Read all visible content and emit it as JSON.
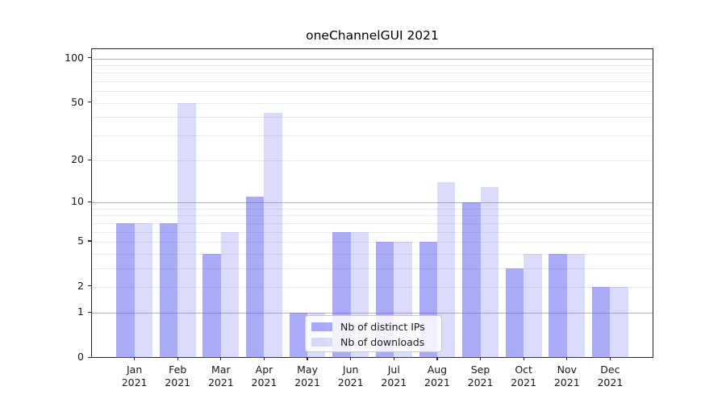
{
  "title": "oneChannelGUI 2021",
  "colors": {
    "bar_distinct_ips": "rgba(85,85,238,0.5)",
    "bar_downloads": "rgba(85,85,238,0.21)",
    "grid_major": "#b4b4b4",
    "grid_minor": "#eaeaee",
    "axis": "#262626",
    "background": "#ffffff"
  },
  "chart_data": {
    "type": "bar",
    "title": "oneChannelGUI 2021",
    "categories": [
      "Jan 2021",
      "Feb 2021",
      "Mar 2021",
      "Apr 2021",
      "May 2021",
      "Jun 2021",
      "Jul 2021",
      "Aug 2021",
      "Sep 2021",
      "Oct 2021",
      "Nov 2021",
      "Dec 2021"
    ],
    "month_names": [
      "Jan",
      "Feb",
      "Mar",
      "Apr",
      "May",
      "Jun",
      "Jul",
      "Aug",
      "Sep",
      "Oct",
      "Nov",
      "Dec"
    ],
    "year": "2021",
    "series": [
      {
        "name": "Nb of distinct IPs",
        "values": [
          7,
          7,
          4,
          11,
          1,
          6,
          5,
          5,
          10,
          3,
          4,
          2
        ]
      },
      {
        "name": "Nb of downloads",
        "values": [
          7,
          50,
          6,
          43,
          1,
          6,
          5,
          14,
          13,
          4,
          4,
          2
        ]
      }
    ],
    "xlabel": "",
    "ylabel": "",
    "yscale": "log1p",
    "ylim": [
      0,
      116
    ],
    "yticks": [
      0,
      1,
      2,
      5,
      10,
      20,
      50,
      100
    ],
    "grid_major_values": [
      1,
      10,
      100
    ],
    "grid_minor_values": [
      2,
      3,
      4,
      5,
      6,
      7,
      8,
      9,
      20,
      30,
      40,
      50,
      60,
      70,
      80,
      90
    ],
    "grid": "on",
    "legend_position": "lower-center"
  }
}
